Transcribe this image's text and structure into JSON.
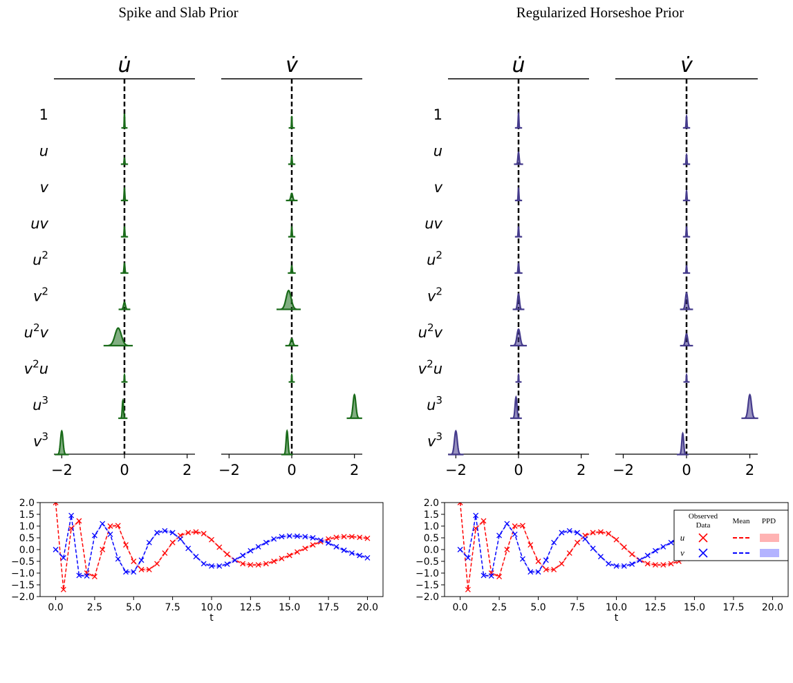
{
  "panel_titles": [
    "Spike and Slab Prior",
    "Regularized Horseshoe Prior"
  ],
  "term_labels": [
    "1",
    "u",
    "v",
    "uv",
    "u^2",
    "v^2",
    "u^2v",
    "v^2u",
    "u^3",
    "v^3"
  ],
  "legend": {
    "title_observed": "Observed Data",
    "title_mean": "Mean",
    "title_ppd": "PPD",
    "rows": [
      "u",
      "v"
    ]
  },
  "colors": {
    "spike_slab": "#1a6b1a",
    "horseshoe": "#453b8c",
    "u_series": "#ff0000",
    "v_series": "#0000ff",
    "u_band": "#ffb3b3",
    "v_band": "#b3b3ff"
  },
  "chart_data": [
    {
      "type": "violin",
      "title": "Spike and Slab Prior",
      "column_labels": [
        "u̇",
        "v̇"
      ],
      "xlim": [
        -2.25,
        2.25
      ],
      "xticks": [
        -2,
        0,
        2
      ],
      "terms": [
        "1",
        "u",
        "v",
        "uv",
        "u^2",
        "v^2",
        "u^2v",
        "v^2u",
        "u^3",
        "v^3"
      ],
      "columns": [
        {
          "name": "u̇",
          "distributions": [
            {
              "term": "1",
              "mean": 0.0,
              "sd": 0.008,
              "peak": 0.6
            },
            {
              "term": "u",
              "mean": 0.0,
              "sd": 0.012,
              "peak": 0.25
            },
            {
              "term": "v",
              "mean": 0.0,
              "sd": 0.012,
              "peak": 0.5
            },
            {
              "term": "uv",
              "mean": 0.0,
              "sd": 0.012,
              "peak": 0.4
            },
            {
              "term": "u^2",
              "mean": 0.0,
              "sd": 0.015,
              "peak": 0.4
            },
            {
              "term": "v^2",
              "mean": 0.0,
              "sd": 0.03,
              "peak": 0.3
            },
            {
              "term": "u^2v",
              "mean": -0.2,
              "sd": 0.1,
              "peak": 0.75
            },
            {
              "term": "v^2u",
              "mean": 0.0,
              "sd": 0.008,
              "peak": 0.3
            },
            {
              "term": "u^3",
              "mean": -0.05,
              "sd": 0.02,
              "peak": 0.75
            },
            {
              "term": "v^3",
              "mean": -2.0,
              "sd": 0.04,
              "peak": 1.0
            }
          ]
        },
        {
          "name": "v̇",
          "distributions": [
            {
              "term": "1",
              "mean": 0.0,
              "sd": 0.008,
              "peak": 0.5
            },
            {
              "term": "u",
              "mean": 0.0,
              "sd": 0.012,
              "peak": 0.3
            },
            {
              "term": "v",
              "mean": 0.0,
              "sd": 0.03,
              "peak": 0.3
            },
            {
              "term": "uv",
              "mean": 0.0,
              "sd": 0.012,
              "peak": 0.4
            },
            {
              "term": "u^2",
              "mean": 0.0,
              "sd": 0.015,
              "peak": 0.3
            },
            {
              "term": "v^2",
              "mean": -0.1,
              "sd": 0.08,
              "peak": 0.8
            },
            {
              "term": "u^2v",
              "mean": 0.0,
              "sd": 0.035,
              "peak": 0.3
            },
            {
              "term": "v^2u",
              "mean": 0.0,
              "sd": 0.008,
              "peak": 0.3
            },
            {
              "term": "u^3",
              "mean": 2.0,
              "sd": 0.045,
              "peak": 1.0
            },
            {
              "term": "v^3",
              "mean": -0.15,
              "sd": 0.03,
              "peak": 1.0
            }
          ]
        }
      ]
    },
    {
      "type": "violin",
      "title": "Regularized Horseshoe Prior",
      "column_labels": [
        "u̇",
        "v̇"
      ],
      "xlim": [
        -2.25,
        2.25
      ],
      "xticks": [
        -2,
        0,
        2
      ],
      "terms": [
        "1",
        "u",
        "v",
        "uv",
        "u^2",
        "v^2",
        "u^2v",
        "v^2u",
        "u^3",
        "v^3"
      ],
      "columns": [
        {
          "name": "u̇",
          "distributions": [
            {
              "term": "1",
              "mean": 0.0,
              "sd": 0.012,
              "peak": 0.6
            },
            {
              "term": "u",
              "mean": 0.0,
              "sd": 0.02,
              "peak": 0.5
            },
            {
              "term": "v",
              "mean": 0.0,
              "sd": 0.012,
              "peak": 0.5
            },
            {
              "term": "uv",
              "mean": 0.0,
              "sd": 0.012,
              "peak": 0.4
            },
            {
              "term": "u^2",
              "mean": 0.0,
              "sd": 0.015,
              "peak": 0.4
            },
            {
              "term": "v^2",
              "mean": 0.0,
              "sd": 0.03,
              "peak": 0.65
            },
            {
              "term": "u^2v",
              "mean": 0.0,
              "sd": 0.05,
              "peak": 0.7
            },
            {
              "term": "v^2u",
              "mean": 0.0,
              "sd": 0.008,
              "peak": 0.3
            },
            {
              "term": "u^3",
              "mean": -0.08,
              "sd": 0.03,
              "peak": 0.9
            },
            {
              "term": "v^3",
              "mean": -2.0,
              "sd": 0.045,
              "peak": 1.0
            }
          ]
        },
        {
          "name": "v̇",
          "distributions": [
            {
              "term": "1",
              "mean": 0.0,
              "sd": 0.012,
              "peak": 0.5
            },
            {
              "term": "u",
              "mean": 0.0,
              "sd": 0.012,
              "peak": 0.4
            },
            {
              "term": "v",
              "mean": 0.0,
              "sd": 0.012,
              "peak": 0.4
            },
            {
              "term": "uv",
              "mean": 0.0,
              "sd": 0.012,
              "peak": 0.4
            },
            {
              "term": "u^2",
              "mean": 0.0,
              "sd": 0.012,
              "peak": 0.3
            },
            {
              "term": "v^2",
              "mean": 0.0,
              "sd": 0.035,
              "peak": 0.7
            },
            {
              "term": "u^2v",
              "mean": 0.0,
              "sd": 0.035,
              "peak": 0.5
            },
            {
              "term": "v^2u",
              "mean": 0.0,
              "sd": 0.008,
              "peak": 0.3
            },
            {
              "term": "u^3",
              "mean": 2.0,
              "sd": 0.05,
              "peak": 1.0
            },
            {
              "term": "v^3",
              "mean": -0.12,
              "sd": 0.03,
              "peak": 0.9
            }
          ]
        }
      ]
    },
    {
      "type": "line",
      "xlabel": "t",
      "xlim": [
        -1,
        21
      ],
      "ylim": [
        -2.0,
        2.0
      ],
      "xticks": [
        0.0,
        2.5,
        5.0,
        7.5,
        10.0,
        12.5,
        15.0,
        17.5,
        20.0
      ],
      "yticks": [
        -2.0,
        -1.5,
        -1.0,
        -0.5,
        0.0,
        0.5,
        1.0,
        1.5,
        2.0
      ],
      "x": [
        0.0,
        0.5,
        1.0,
        1.5,
        2.0,
        2.5,
        3.0,
        3.5,
        4.0,
        4.5,
        5.0,
        5.5,
        6.0,
        6.5,
        7.0,
        7.5,
        8.0,
        8.5,
        9.0,
        9.5,
        10.0,
        10.5,
        11.0,
        11.5,
        12.0,
        12.5,
        13.0,
        13.5,
        14.0,
        14.5,
        15.0,
        15.5,
        16.0,
        16.5,
        17.0,
        17.5,
        18.0,
        18.5,
        19.0,
        19.5,
        20.0
      ],
      "series": [
        {
          "name": "u",
          "mean": [
            2.0,
            -1.7,
            0.9,
            1.22,
            -1.0,
            -1.15,
            0.0,
            1.0,
            1.02,
            0.2,
            -0.5,
            -0.85,
            -0.85,
            -0.6,
            -0.15,
            0.3,
            0.6,
            0.72,
            0.75,
            0.68,
            0.42,
            0.1,
            -0.2,
            -0.45,
            -0.6,
            -0.65,
            -0.65,
            -0.6,
            -0.5,
            -0.38,
            -0.25,
            -0.1,
            0.05,
            0.2,
            0.33,
            0.45,
            0.52,
            0.55,
            0.55,
            0.52,
            0.48
          ],
          "observed": [
            2.0,
            -1.7,
            0.9,
            1.22,
            -1.0,
            -1.15,
            0.0,
            1.0,
            1.02,
            0.2,
            -0.5,
            -0.85,
            -0.85,
            -0.6,
            -0.15,
            0.3,
            0.6,
            0.72,
            0.75,
            0.68,
            0.42,
            0.1,
            -0.2,
            -0.45,
            -0.6,
            -0.65,
            -0.65,
            -0.6,
            -0.5,
            -0.38,
            -0.25,
            -0.1,
            0.05,
            0.2,
            0.33,
            0.45,
            0.52,
            0.55,
            0.55,
            0.52,
            0.48
          ]
        },
        {
          "name": "v",
          "mean": [
            0.0,
            -0.35,
            1.45,
            -1.1,
            -1.12,
            0.6,
            1.1,
            0.65,
            -0.4,
            -0.95,
            -0.95,
            -0.45,
            0.3,
            0.72,
            0.8,
            0.72,
            0.45,
            0.05,
            -0.3,
            -0.6,
            -0.7,
            -0.7,
            -0.62,
            -0.45,
            -0.25,
            -0.05,
            0.12,
            0.3,
            0.45,
            0.55,
            0.58,
            0.57,
            0.55,
            0.5,
            0.4,
            0.28,
            0.12,
            -0.03,
            -0.15,
            -0.25,
            -0.35
          ],
          "observed": [
            0.0,
            -0.35,
            1.45,
            -1.1,
            -1.12,
            0.6,
            1.1,
            0.65,
            -0.4,
            -0.95,
            -0.95,
            -0.45,
            0.3,
            0.72,
            0.8,
            0.72,
            0.45,
            0.05,
            -0.3,
            -0.6,
            -0.7,
            -0.7,
            -0.62,
            -0.45,
            -0.25,
            -0.05,
            0.12,
            0.3,
            0.45,
            0.55,
            0.58,
            0.57,
            0.55,
            0.5,
            0.4,
            0.28,
            0.12,
            -0.03,
            -0.15,
            -0.25,
            -0.35
          ]
        }
      ]
    }
  ]
}
